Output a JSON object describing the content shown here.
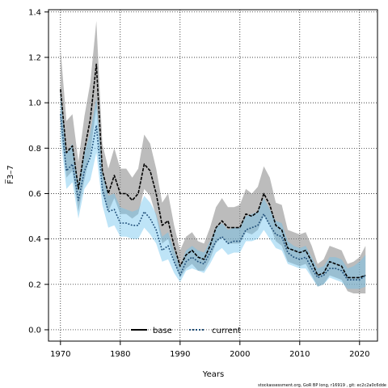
{
  "chart_data": {
    "type": "line",
    "xlabel": "Years",
    "ylabel": "F̅3–7",
    "xlim": [
      1968,
      2023
    ],
    "ylim": [
      -0.05,
      1.41
    ],
    "xticks": [
      1970,
      1980,
      1990,
      2000,
      2010,
      2020
    ],
    "yticks": [
      0.0,
      0.2,
      0.4,
      0.6,
      0.8,
      1.0,
      1.2,
      1.4
    ],
    "grid": true,
    "legend_position": "bottom-center",
    "x": [
      1970,
      1971,
      1972,
      1973,
      1974,
      1975,
      1976,
      1977,
      1978,
      1979,
      1980,
      1981,
      1982,
      1983,
      1984,
      1985,
      1986,
      1987,
      1988,
      1989,
      1990,
      1991,
      1992,
      1993,
      1994,
      1995,
      1996,
      1997,
      1998,
      1999,
      2000,
      2001,
      2002,
      2003,
      2004,
      2005,
      2006,
      2007,
      2008,
      2009,
      2010,
      2011,
      2012,
      2013,
      2014,
      2015,
      2016,
      2017,
      2018,
      2019,
      2020,
      2021
    ],
    "series": [
      {
        "name": "base",
        "color": "#000000",
        "band_color": "#8f8f8f",
        "values": [
          1.06,
          0.78,
          0.81,
          0.62,
          0.79,
          0.93,
          1.17,
          0.7,
          0.6,
          0.68,
          0.6,
          0.6,
          0.57,
          0.6,
          0.73,
          0.7,
          0.6,
          0.46,
          0.48,
          0.37,
          0.28,
          0.33,
          0.35,
          0.32,
          0.31,
          0.37,
          0.45,
          0.48,
          0.45,
          0.45,
          0.45,
          0.51,
          0.5,
          0.52,
          0.6,
          0.55,
          0.46,
          0.44,
          0.36,
          0.35,
          0.34,
          0.35,
          0.3,
          0.24,
          0.25,
          0.3,
          0.29,
          0.28,
          0.23,
          0.23,
          0.23,
          0.24
        ],
        "lower": [
          0.9,
          0.67,
          0.7,
          0.52,
          0.66,
          0.78,
          0.98,
          0.6,
          0.52,
          0.58,
          0.51,
          0.51,
          0.49,
          0.51,
          0.62,
          0.59,
          0.5,
          0.38,
          0.4,
          0.3,
          0.23,
          0.27,
          0.29,
          0.26,
          0.26,
          0.31,
          0.38,
          0.41,
          0.38,
          0.38,
          0.38,
          0.43,
          0.42,
          0.44,
          0.5,
          0.46,
          0.39,
          0.37,
          0.3,
          0.29,
          0.28,
          0.29,
          0.24,
          0.19,
          0.2,
          0.24,
          0.23,
          0.22,
          0.17,
          0.16,
          0.16,
          0.16
        ],
        "upper": [
          1.24,
          0.92,
          0.95,
          0.74,
          0.94,
          1.09,
          1.36,
          0.82,
          0.71,
          0.8,
          0.71,
          0.71,
          0.67,
          0.71,
          0.86,
          0.82,
          0.71,
          0.56,
          0.6,
          0.46,
          0.35,
          0.41,
          0.43,
          0.39,
          0.38,
          0.45,
          0.54,
          0.58,
          0.54,
          0.54,
          0.55,
          0.62,
          0.6,
          0.63,
          0.72,
          0.67,
          0.56,
          0.55,
          0.44,
          0.43,
          0.42,
          0.43,
          0.37,
          0.29,
          0.31,
          0.37,
          0.36,
          0.35,
          0.29,
          0.3,
          0.32,
          0.37
        ]
      },
      {
        "name": "current",
        "color": "#1f4e79",
        "band_color": "#6fc3ee",
        "values": [
          0.95,
          0.7,
          0.73,
          0.57,
          0.7,
          0.76,
          0.9,
          0.62,
          0.52,
          0.53,
          0.47,
          0.47,
          0.46,
          0.46,
          0.52,
          0.49,
          0.44,
          0.35,
          0.37,
          0.3,
          0.24,
          0.3,
          0.32,
          0.3,
          0.29,
          0.34,
          0.39,
          0.41,
          0.38,
          0.39,
          0.39,
          0.44,
          0.45,
          0.46,
          0.51,
          0.46,
          0.42,
          0.41,
          0.34,
          0.32,
          0.31,
          0.32,
          0.27,
          0.23,
          0.24,
          0.27,
          0.27,
          0.26,
          0.22,
          0.22,
          0.22,
          0.24
        ],
        "lower": [
          0.85,
          0.62,
          0.65,
          0.49,
          0.62,
          0.66,
          0.78,
          0.55,
          0.45,
          0.46,
          0.41,
          0.41,
          0.4,
          0.4,
          0.45,
          0.42,
          0.38,
          0.3,
          0.31,
          0.25,
          0.21,
          0.26,
          0.27,
          0.26,
          0.25,
          0.29,
          0.34,
          0.36,
          0.33,
          0.34,
          0.34,
          0.39,
          0.39,
          0.4,
          0.44,
          0.4,
          0.36,
          0.35,
          0.29,
          0.28,
          0.27,
          0.27,
          0.23,
          0.19,
          0.2,
          0.23,
          0.22,
          0.21,
          0.18,
          0.18,
          0.18,
          0.19
        ],
        "upper": [
          1.06,
          0.78,
          0.82,
          0.65,
          0.78,
          0.87,
          1.02,
          0.7,
          0.59,
          0.6,
          0.54,
          0.53,
          0.52,
          0.53,
          0.59,
          0.56,
          0.51,
          0.41,
          0.43,
          0.35,
          0.28,
          0.35,
          0.37,
          0.35,
          0.34,
          0.39,
          0.45,
          0.47,
          0.44,
          0.45,
          0.45,
          0.5,
          0.51,
          0.52,
          0.58,
          0.53,
          0.48,
          0.47,
          0.39,
          0.37,
          0.36,
          0.37,
          0.32,
          0.27,
          0.28,
          0.32,
          0.32,
          0.31,
          0.27,
          0.28,
          0.3,
          0.33
        ]
      }
    ]
  },
  "footer_note": "stockassessment.org, GoR BP long, r16919 , git: ec2c2a0c6dde"
}
